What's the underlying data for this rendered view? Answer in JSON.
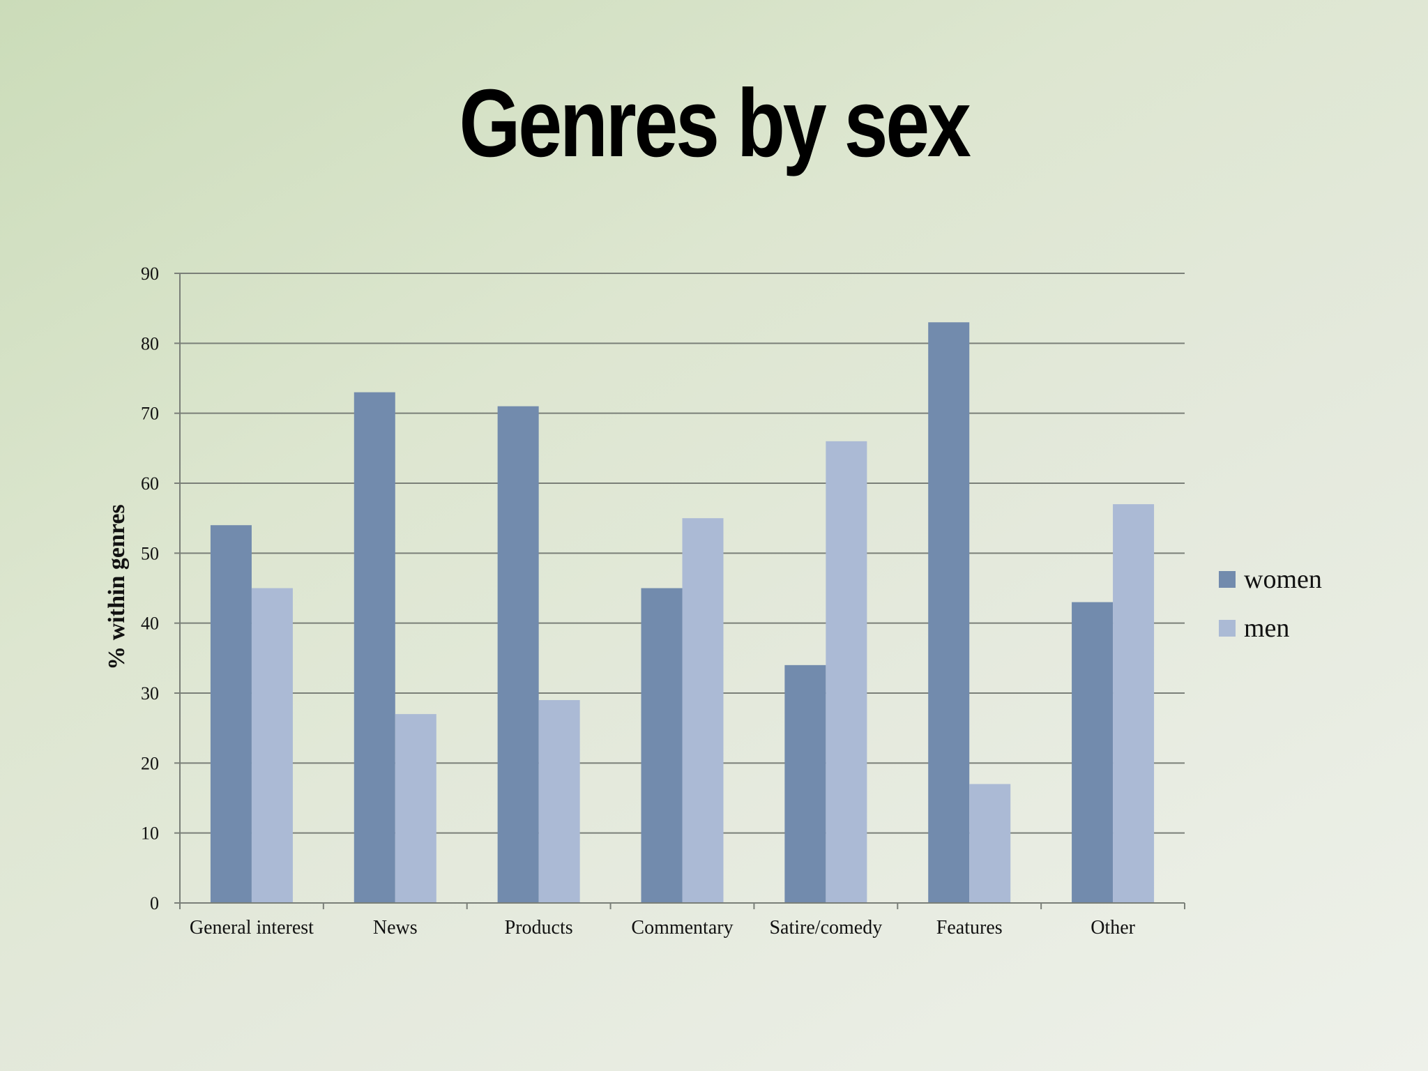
{
  "title": "Genres by sex",
  "chart_data": {
    "type": "bar",
    "categories": [
      "General interest",
      "News",
      "Products",
      "Commentary",
      "Satire/comedy",
      "Features",
      "Other"
    ],
    "series": [
      {
        "name": "women",
        "color": "#728bad",
        "values": [
          54,
          73,
          71,
          45,
          34,
          83,
          43
        ]
      },
      {
        "name": "men",
        "color": "#abbad5",
        "values": [
          45,
          27,
          29,
          55,
          66,
          17,
          57
        ]
      }
    ],
    "ylabel": "% within genres",
    "xlabel": "",
    "ylim": [
      0,
      90
    ],
    "yticks": [
      "0",
      "10",
      "20",
      "30",
      "40",
      "50",
      "60",
      "70",
      "80",
      "90"
    ],
    "grid": true,
    "legend_position": "right"
  }
}
